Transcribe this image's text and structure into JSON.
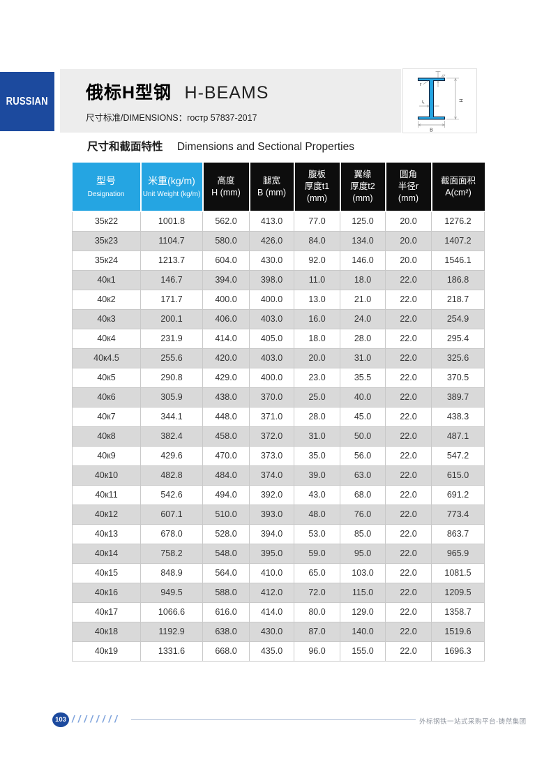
{
  "header": {
    "banner_label": "RUSSIAN",
    "banner_color": "#1C4A9E",
    "title_cn": "俄标H型钢",
    "title_en": "H-BEAMS",
    "subtitle": "尺寸标准/DIMENSIONS：гостр 57837-2017"
  },
  "diagram": {
    "beam_color": "#25A5E2",
    "labels": {
      "t2": "t₂",
      "r": "r",
      "h": "H",
      "t1": "t₁",
      "b": "B"
    }
  },
  "section": {
    "title_cn": "尺寸和截面特性",
    "title_en": "Dimensions and Sectional Properties"
  },
  "table": {
    "accent_blue": "#25A5E2",
    "header_black": "#0D0D0D",
    "stripe_gray": "#D9D9D9",
    "columns": [
      {
        "style": "blue",
        "lines": [
          "型号",
          "Designation"
        ]
      },
      {
        "style": "blue",
        "lines": [
          "米重(kg/m)",
          "Unit Weight (kg/m)"
        ]
      },
      {
        "style": "black",
        "lines": [
          "高度",
          "H (mm)"
        ]
      },
      {
        "style": "black",
        "lines": [
          "腿宽",
          "B (mm)"
        ]
      },
      {
        "style": "black",
        "lines": [
          "腹板",
          "厚度t1",
          "(mm)"
        ]
      },
      {
        "style": "black",
        "lines": [
          "翼缘",
          "厚度t2",
          "(mm)"
        ]
      },
      {
        "style": "black",
        "lines": [
          "圆角",
          "半径r",
          "(mm)"
        ]
      },
      {
        "style": "black",
        "lines": [
          "截面面积",
          "A(cm²)"
        ]
      }
    ],
    "rows": [
      [
        "35к22",
        "1001.8",
        "562.0",
        "413.0",
        "77.0",
        "125.0",
        "20.0",
        "1276.2"
      ],
      [
        "35к23",
        "1104.7",
        "580.0",
        "426.0",
        "84.0",
        "134.0",
        "20.0",
        "1407.2"
      ],
      [
        "35к24",
        "1213.7",
        "604.0",
        "430.0",
        "92.0",
        "146.0",
        "20.0",
        "1546.1"
      ],
      [
        "40к1",
        "146.7",
        "394.0",
        "398.0",
        "11.0",
        "18.0",
        "22.0",
        "186.8"
      ],
      [
        "40к2",
        "171.7",
        "400.0",
        "400.0",
        "13.0",
        "21.0",
        "22.0",
        "218.7"
      ],
      [
        "40к3",
        "200.1",
        "406.0",
        "403.0",
        "16.0",
        "24.0",
        "22.0",
        "254.9"
      ],
      [
        "40к4",
        "231.9",
        "414.0",
        "405.0",
        "18.0",
        "28.0",
        "22.0",
        "295.4"
      ],
      [
        "40к4.5",
        "255.6",
        "420.0",
        "403.0",
        "20.0",
        "31.0",
        "22.0",
        "325.6"
      ],
      [
        "40к5",
        "290.8",
        "429.0",
        "400.0",
        "23.0",
        "35.5",
        "22.0",
        "370.5"
      ],
      [
        "40к6",
        "305.9",
        "438.0",
        "370.0",
        "25.0",
        "40.0",
        "22.0",
        "389.7"
      ],
      [
        "40к7",
        "344.1",
        "448.0",
        "371.0",
        "28.0",
        "45.0",
        "22.0",
        "438.3"
      ],
      [
        "40к8",
        "382.4",
        "458.0",
        "372.0",
        "31.0",
        "50.0",
        "22.0",
        "487.1"
      ],
      [
        "40к9",
        "429.6",
        "470.0",
        "373.0",
        "35.0",
        "56.0",
        "22.0",
        "547.2"
      ],
      [
        "40к10",
        "482.8",
        "484.0",
        "374.0",
        "39.0",
        "63.0",
        "22.0",
        "615.0"
      ],
      [
        "40к11",
        "542.6",
        "494.0",
        "392.0",
        "43.0",
        "68.0",
        "22.0",
        "691.2"
      ],
      [
        "40к12",
        "607.1",
        "510.0",
        "393.0",
        "48.0",
        "76.0",
        "22.0",
        "773.4"
      ],
      [
        "40к13",
        "678.0",
        "528.0",
        "394.0",
        "53.0",
        "85.0",
        "22.0",
        "863.7"
      ],
      [
        "40к14",
        "758.2",
        "548.0",
        "395.0",
        "59.0",
        "95.0",
        "22.0",
        "965.9"
      ],
      [
        "40к15",
        "848.9",
        "564.0",
        "410.0",
        "65.0",
        "103.0",
        "22.0",
        "1081.5"
      ],
      [
        "40к16",
        "949.5",
        "588.0",
        "412.0",
        "72.0",
        "115.0",
        "22.0",
        "1209.5"
      ],
      [
        "40к17",
        "1066.6",
        "616.0",
        "414.0",
        "80.0",
        "129.0",
        "22.0",
        "1358.7"
      ],
      [
        "40к18",
        "1192.9",
        "638.0",
        "430.0",
        "87.0",
        "140.0",
        "22.0",
        "1519.6"
      ],
      [
        "40к19",
        "1331.6",
        "668.0",
        "435.0",
        "96.0",
        "155.0",
        "22.0",
        "1696.3"
      ]
    ]
  },
  "footer": {
    "page_number": "103",
    "slashes": "////////",
    "brand_text": "外标钢铁一站式采购平台-铸然集团"
  }
}
